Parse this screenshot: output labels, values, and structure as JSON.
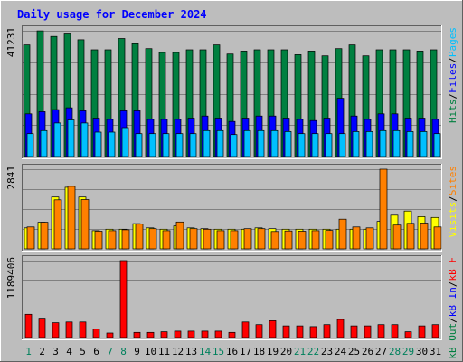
{
  "chart_data": {
    "type": "bar",
    "title": "Daily usage for December 2024",
    "x": [
      1,
      2,
      3,
      4,
      5,
      6,
      7,
      8,
      9,
      10,
      11,
      12,
      13,
      14,
      15,
      16,
      17,
      18,
      19,
      20,
      21,
      22,
      23,
      24,
      25,
      26,
      27,
      28,
      29,
      30,
      31
    ],
    "weekend_days": [
      1,
      7,
      8,
      14,
      15,
      21,
      22,
      28,
      29
    ],
    "colors": {
      "hits": "#008040",
      "files": "#0000ff",
      "pages": "#00c0ff",
      "visits": "#ffff00",
      "sites": "#ff8000",
      "kbf": "#ff0000",
      "kbin": "#0000ff",
      "kbout": "#008040",
      "weekend": "#00805c",
      "weekday": "#000000",
      "title": "#0000ff"
    },
    "panels": [
      {
        "id": "hits-files-pages",
        "max_label": "41231",
        "ylim": [
          0,
          41231
        ],
        "legend": [
          {
            "name": "Pages",
            "color": "#00c0ff"
          },
          {
            "name": "Files",
            "color": "#0000ff"
          },
          {
            "name": "Hits",
            "color": "#008040"
          }
        ],
        "series": [
          {
            "name": "Hits",
            "color": "#008040",
            "values": [
              36600,
              41200,
              39400,
              40200,
              38300,
              35000,
              35000,
              38700,
              37000,
              35400,
              34100,
              34100,
              35000,
              35000,
              36600,
              33600,
              34600,
              35000,
              35000,
              35000,
              33400,
              34600,
              33000,
              35400,
              36600,
              33000,
              35000,
              35000,
              35000,
              34600,
              35000
            ]
          },
          {
            "name": "Files",
            "color": "#0000ff",
            "values": [
              14000,
              14700,
              15400,
              16000,
              15000,
              12600,
              12200,
              15000,
              15000,
              12200,
              12200,
              12200,
              12600,
              13300,
              12600,
              11500,
              12600,
              13300,
              13300,
              12600,
              12200,
              11800,
              12600,
              19100,
              13300,
              12200,
              14000,
              14000,
              12600,
              12600,
              12200
            ]
          },
          {
            "name": "Pages",
            "color": "#00c0ff",
            "values": [
              7500,
              8500,
              11000,
              12000,
              11000,
              8000,
              8000,
              9500,
              7500,
              7500,
              7500,
              7500,
              7500,
              8500,
              8500,
              7200,
              8500,
              8500,
              8500,
              8200,
              7500,
              7500,
              7500,
              7500,
              8200,
              8200,
              8500,
              8500,
              8200,
              8200,
              7500
            ]
          }
        ]
      },
      {
        "id": "visits-sites",
        "max_label": "2841",
        "ylim": [
          0,
          2841
        ],
        "legend": [
          {
            "name": "Sites",
            "color": "#ff8000"
          },
          {
            "name": "Visits",
            "color": "#ffff00"
          }
        ],
        "series": [
          {
            "name": "Visits",
            "color": "#ffff00",
            "values": [
              750,
              950,
              1850,
              2200,
              1850,
              650,
              700,
              700,
              900,
              750,
              700,
              820,
              750,
              720,
              700,
              700,
              700,
              750,
              720,
              700,
              700,
              700,
              700,
              700,
              700,
              700,
              980,
              1200,
              1350,
              1150,
              1120
            ]
          },
          {
            "name": "Sites",
            "color": "#ff8000",
            "values": [
              780,
              950,
              1750,
              2230,
              1760,
              630,
              650,
              680,
              880,
              720,
              650,
              960,
              720,
              700,
              650,
              650,
              720,
              720,
              620,
              640,
              630,
              650,
              660,
              1060,
              780,
              750,
              2841,
              850,
              910,
              920,
              780
            ]
          }
        ]
      },
      {
        "id": "kb",
        "max_label": "1189406",
        "ylim": [
          0,
          1189406
        ],
        "legend": [
          {
            "name": "kB F",
            "color": "#ff0000"
          },
          {
            "name": "kB In",
            "color": "#0000ff"
          },
          {
            "name": "kB Out",
            "color": "#008040"
          }
        ],
        "series": [
          {
            "name": "kB F",
            "color": "#ff0000",
            "values": [
              360000,
              300000,
              230000,
              240000,
              240000,
              130000,
              70000,
              1189406,
              80000,
              80000,
              90000,
              100000,
              100000,
              100000,
              100000,
              80000,
              240000,
              200000,
              260000,
              180000,
              180000,
              170000,
              200000,
              280000,
              180000,
              180000,
              200000,
              200000,
              90000,
              180000,
              200000
            ]
          }
        ]
      }
    ]
  }
}
